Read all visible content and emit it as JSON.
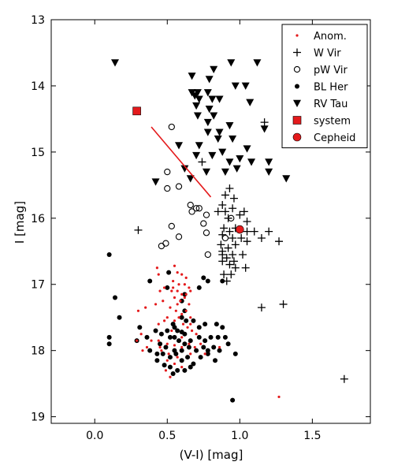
{
  "chart_data": {
    "type": "scatter",
    "xlabel": "(V-I) [mag]",
    "ylabel": "I [mag]",
    "xlim": [
      -0.3,
      1.9
    ],
    "ylim": [
      19.1,
      13.0
    ],
    "y_inverted": true,
    "xticks": [
      0.0,
      0.5,
      1.0,
      1.5
    ],
    "xtick_labels": [
      "0.0",
      "0.5",
      "1.0",
      "1.5"
    ],
    "yticks": [
      13,
      14,
      15,
      16,
      17,
      18,
      19
    ],
    "ytick_labels": [
      "13",
      "14",
      "15",
      "16",
      "17",
      "18",
      "19"
    ],
    "grid": false,
    "legend_position": "top-right",
    "legend": [
      {
        "label": "Anom.",
        "marker": "small-dot",
        "color": "#e41a1c"
      },
      {
        "label": "W Vir",
        "marker": "plus",
        "color": "#000000"
      },
      {
        "label": "pW Vir",
        "marker": "open-circle",
        "color": "#000000"
      },
      {
        "label": "BL Her",
        "marker": "filled-circle",
        "color": "#000000"
      },
      {
        "label": "RV Tau",
        "marker": "triangle-down",
        "color": "#000000"
      },
      {
        "label": "system",
        "marker": "square",
        "color": "#e41a1c"
      },
      {
        "label": "Cepheid",
        "marker": "big-circle",
        "color": "#e41a1c"
      }
    ],
    "line": {
      "color": "#e41a1c",
      "x": [
        0.39,
        0.8
      ],
      "y": [
        14.62,
        15.68
      ]
    },
    "series": [
      {
        "name": "RV Tau",
        "marker": "triangle-down",
        "color": "#000000",
        "points": [
          [
            0.14,
            13.65
          ],
          [
            0.67,
            13.85
          ],
          [
            0.82,
            13.75
          ],
          [
            0.94,
            13.65
          ],
          [
            1.12,
            13.65
          ],
          [
            0.79,
            13.9
          ],
          [
            0.97,
            14.0
          ],
          [
            1.04,
            14.0
          ],
          [
            0.67,
            14.1
          ],
          [
            0.69,
            14.15
          ],
          [
            0.71,
            14.1
          ],
          [
            0.72,
            14.2
          ],
          [
            0.78,
            14.1
          ],
          [
            0.81,
            14.2
          ],
          [
            0.86,
            14.2
          ],
          [
            0.7,
            14.3
          ],
          [
            1.07,
            14.25
          ],
          [
            0.71,
            14.45
          ],
          [
            0.78,
            14.55
          ],
          [
            0.79,
            14.35
          ],
          [
            0.82,
            14.45
          ],
          [
            0.86,
            14.7
          ],
          [
            0.93,
            14.6
          ],
          [
            1.17,
            14.65
          ],
          [
            0.78,
            14.7
          ],
          [
            0.85,
            14.8
          ],
          [
            0.95,
            14.8
          ],
          [
            0.58,
            14.9
          ],
          [
            0.72,
            14.9
          ],
          [
            1.05,
            14.95
          ],
          [
            0.7,
            15.05
          ],
          [
            0.81,
            15.05
          ],
          [
            0.88,
            15.0
          ],
          [
            0.93,
            15.15
          ],
          [
            1.08,
            15.15
          ],
          [
            1.2,
            15.15
          ],
          [
            0.62,
            15.25
          ],
          [
            0.77,
            15.3
          ],
          [
            0.9,
            15.3
          ],
          [
            0.98,
            15.25
          ],
          [
            1.0,
            15.1
          ],
          [
            0.66,
            15.4
          ],
          [
            1.2,
            15.3
          ],
          [
            1.32,
            15.4
          ],
          [
            0.42,
            15.45
          ]
        ]
      },
      {
        "name": "W Vir",
        "marker": "plus",
        "color": "#000000",
        "points": [
          [
            0.74,
            15.15
          ],
          [
            1.17,
            14.55
          ],
          [
            0.93,
            15.55
          ],
          [
            0.9,
            15.65
          ],
          [
            0.96,
            15.7
          ],
          [
            0.88,
            15.8
          ],
          [
            0.85,
            15.9
          ],
          [
            0.9,
            15.9
          ],
          [
            0.95,
            15.85
          ],
          [
            1.0,
            15.95
          ],
          [
            0.92,
            16.0
          ],
          [
            1.03,
            15.9
          ],
          [
            1.05,
            16.05
          ],
          [
            0.89,
            16.15
          ],
          [
            0.93,
            16.2
          ],
          [
            0.97,
            16.15
          ],
          [
            1.05,
            16.2
          ],
          [
            0.88,
            16.25
          ],
          [
            0.95,
            16.3
          ],
          [
            1.01,
            16.3
          ],
          [
            0.87,
            16.4
          ],
          [
            0.92,
            16.45
          ],
          [
            0.97,
            16.4
          ],
          [
            0.88,
            16.55
          ],
          [
            0.91,
            16.6
          ],
          [
            0.95,
            16.55
          ],
          [
            0.88,
            16.65
          ],
          [
            0.93,
            16.7
          ],
          [
            0.97,
            16.75
          ],
          [
            0.89,
            16.85
          ],
          [
            0.94,
            16.85
          ],
          [
            0.91,
            16.95
          ],
          [
            0.88,
            16.5
          ],
          [
            1.05,
            16.35
          ],
          [
            1.1,
            16.2
          ],
          [
            1.15,
            16.3
          ],
          [
            1.2,
            16.2
          ],
          [
            1.27,
            16.35
          ],
          [
            1.04,
            16.75
          ],
          [
            0.3,
            16.18
          ],
          [
            1.15,
            17.35
          ],
          [
            1.3,
            17.3
          ],
          [
            1.72,
            18.43
          ],
          [
            0.96,
            16.65
          ],
          [
            1.02,
            16.55
          ]
        ]
      },
      {
        "name": "pW Vir",
        "marker": "open-circle",
        "color": "#000000",
        "points": [
          [
            0.53,
            14.62
          ],
          [
            0.5,
            15.3
          ],
          [
            0.5,
            15.55
          ],
          [
            0.58,
            15.52
          ],
          [
            0.66,
            15.8
          ],
          [
            0.67,
            15.9
          ],
          [
            0.7,
            15.85
          ],
          [
            0.72,
            15.85
          ],
          [
            0.77,
            15.95
          ],
          [
            0.75,
            16.08
          ],
          [
            0.53,
            16.12
          ],
          [
            0.58,
            16.28
          ],
          [
            0.49,
            16.38
          ],
          [
            0.46,
            16.42
          ],
          [
            0.77,
            16.22
          ],
          [
            0.78,
            16.55
          ],
          [
            0.9,
            16.3
          ],
          [
            0.94,
            16.0
          ]
        ]
      },
      {
        "name": "BL Her",
        "marker": "filled-circle",
        "color": "#000000",
        "points": [
          [
            0.1,
            16.55
          ],
          [
            0.14,
            17.2
          ],
          [
            0.38,
            16.95
          ],
          [
            0.51,
            16.82
          ],
          [
            0.5,
            17.05
          ],
          [
            0.62,
            17.15
          ],
          [
            0.75,
            16.9
          ],
          [
            0.78,
            16.95
          ],
          [
            0.88,
            16.95
          ],
          [
            0.72,
            17.05
          ],
          [
            0.6,
            17.25
          ],
          [
            0.62,
            17.4
          ],
          [
            0.6,
            17.5
          ],
          [
            0.63,
            17.55
          ],
          [
            0.54,
            17.6
          ],
          [
            0.57,
            17.7
          ],
          [
            0.6,
            17.72
          ],
          [
            0.68,
            17.55
          ],
          [
            0.72,
            17.65
          ],
          [
            0.76,
            17.6
          ],
          [
            0.84,
            17.6
          ],
          [
            0.88,
            17.65
          ],
          [
            0.17,
            17.5
          ],
          [
            0.1,
            17.8
          ],
          [
            0.1,
            17.9
          ],
          [
            0.29,
            17.85
          ],
          [
            0.36,
            17.8
          ],
          [
            0.31,
            17.65
          ],
          [
            0.42,
            17.7
          ],
          [
            0.46,
            17.75
          ],
          [
            0.5,
            17.7
          ],
          [
            0.52,
            17.8
          ],
          [
            0.55,
            17.8
          ],
          [
            0.58,
            17.85
          ],
          [
            0.62,
            17.9
          ],
          [
            0.66,
            17.85
          ],
          [
            0.72,
            17.8
          ],
          [
            0.76,
            17.85
          ],
          [
            0.8,
            17.8
          ],
          [
            0.85,
            17.8
          ],
          [
            0.9,
            17.8
          ],
          [
            0.45,
            17.9
          ],
          [
            0.49,
            17.95
          ],
          [
            0.55,
            18.0
          ],
          [
            0.6,
            18.0
          ],
          [
            0.65,
            17.95
          ],
          [
            0.7,
            18.0
          ],
          [
            0.75,
            17.95
          ],
          [
            0.78,
            18.0
          ],
          [
            0.82,
            17.95
          ],
          [
            0.86,
            18.0
          ],
          [
            0.92,
            17.9
          ],
          [
            0.43,
            18.05
          ],
          [
            0.47,
            18.05
          ],
          [
            0.52,
            18.1
          ],
          [
            0.56,
            18.05
          ],
          [
            0.6,
            18.15
          ],
          [
            0.64,
            18.1
          ],
          [
            0.68,
            18.2
          ],
          [
            0.73,
            18.1
          ],
          [
            0.78,
            18.05
          ],
          [
            0.83,
            18.15
          ],
          [
            0.52,
            18.25
          ],
          [
            0.48,
            18.22
          ],
          [
            0.57,
            18.3
          ],
          [
            0.54,
            18.35
          ],
          [
            0.62,
            18.3
          ],
          [
            0.66,
            18.25
          ],
          [
            0.43,
            18.15
          ],
          [
            0.38,
            18.0
          ],
          [
            0.97,
            18.05
          ],
          [
            0.95,
            18.75
          ],
          [
            0.62,
            17.75
          ],
          [
            0.55,
            17.65
          ]
        ]
      },
      {
        "name": "Anom.",
        "marker": "small-dot",
        "color": "#e41a1c",
        "points": [
          [
            0.43,
            16.75
          ],
          [
            0.44,
            16.85
          ],
          [
            0.55,
            16.72
          ],
          [
            0.57,
            16.82
          ],
          [
            0.6,
            16.85
          ],
          [
            0.63,
            16.9
          ],
          [
            0.54,
            16.95
          ],
          [
            0.58,
            17.0
          ],
          [
            0.62,
            17.0
          ],
          [
            0.65,
            17.05
          ],
          [
            0.53,
            17.1
          ],
          [
            0.57,
            17.1
          ],
          [
            0.6,
            17.15
          ],
          [
            0.63,
            17.15
          ],
          [
            0.66,
            17.1
          ],
          [
            0.48,
            17.05
          ],
          [
            0.45,
            17.1
          ],
          [
            0.55,
            17.2
          ],
          [
            0.59,
            17.25
          ],
          [
            0.62,
            17.2
          ],
          [
            0.65,
            17.3
          ],
          [
            0.52,
            17.35
          ],
          [
            0.56,
            17.4
          ],
          [
            0.6,
            17.45
          ],
          [
            0.63,
            17.4
          ],
          [
            0.42,
            17.3
          ],
          [
            0.47,
            17.25
          ],
          [
            0.35,
            17.35
          ],
          [
            0.3,
            17.4
          ],
          [
            0.5,
            17.5
          ],
          [
            0.55,
            17.55
          ],
          [
            0.58,
            17.5
          ],
          [
            0.44,
            17.6
          ],
          [
            0.48,
            17.55
          ],
          [
            0.66,
            17.5
          ],
          [
            0.53,
            17.7
          ],
          [
            0.61,
            17.6
          ],
          [
            0.64,
            17.65
          ],
          [
            0.67,
            17.7
          ],
          [
            0.7,
            17.75
          ],
          [
            0.32,
            17.75
          ],
          [
            0.29,
            17.85
          ],
          [
            0.39,
            17.85
          ],
          [
            0.44,
            17.85
          ],
          [
            0.5,
            17.9
          ],
          [
            0.55,
            17.92
          ],
          [
            0.6,
            17.95
          ],
          [
            0.65,
            17.9
          ],
          [
            0.69,
            17.95
          ],
          [
            0.73,
            17.9
          ],
          [
            0.76,
            18.05
          ],
          [
            0.33,
            18.0
          ],
          [
            0.46,
            18.0
          ],
          [
            0.51,
            18.05
          ],
          [
            0.57,
            18.1
          ],
          [
            0.66,
            18.05
          ],
          [
            0.86,
            17.95
          ],
          [
            0.5,
            18.15
          ],
          [
            0.55,
            18.2
          ],
          [
            0.6,
            18.25
          ],
          [
            0.49,
            18.3
          ],
          [
            0.52,
            18.4
          ],
          [
            0.45,
            17.95
          ],
          [
            0.6,
            17.8
          ],
          [
            1.27,
            18.7
          ],
          [
            0.57,
            17.3
          ],
          [
            0.54,
            17.05
          ],
          [
            0.66,
            17.6
          ],
          [
            0.36,
            17.95
          ]
        ]
      }
    ],
    "system": {
      "name": "system",
      "x": 0.29,
      "y": 14.38,
      "color": "#e41a1c"
    },
    "cepheid": {
      "name": "Cepheid",
      "x": 1.0,
      "y": 16.17,
      "color": "#e41a1c"
    }
  }
}
